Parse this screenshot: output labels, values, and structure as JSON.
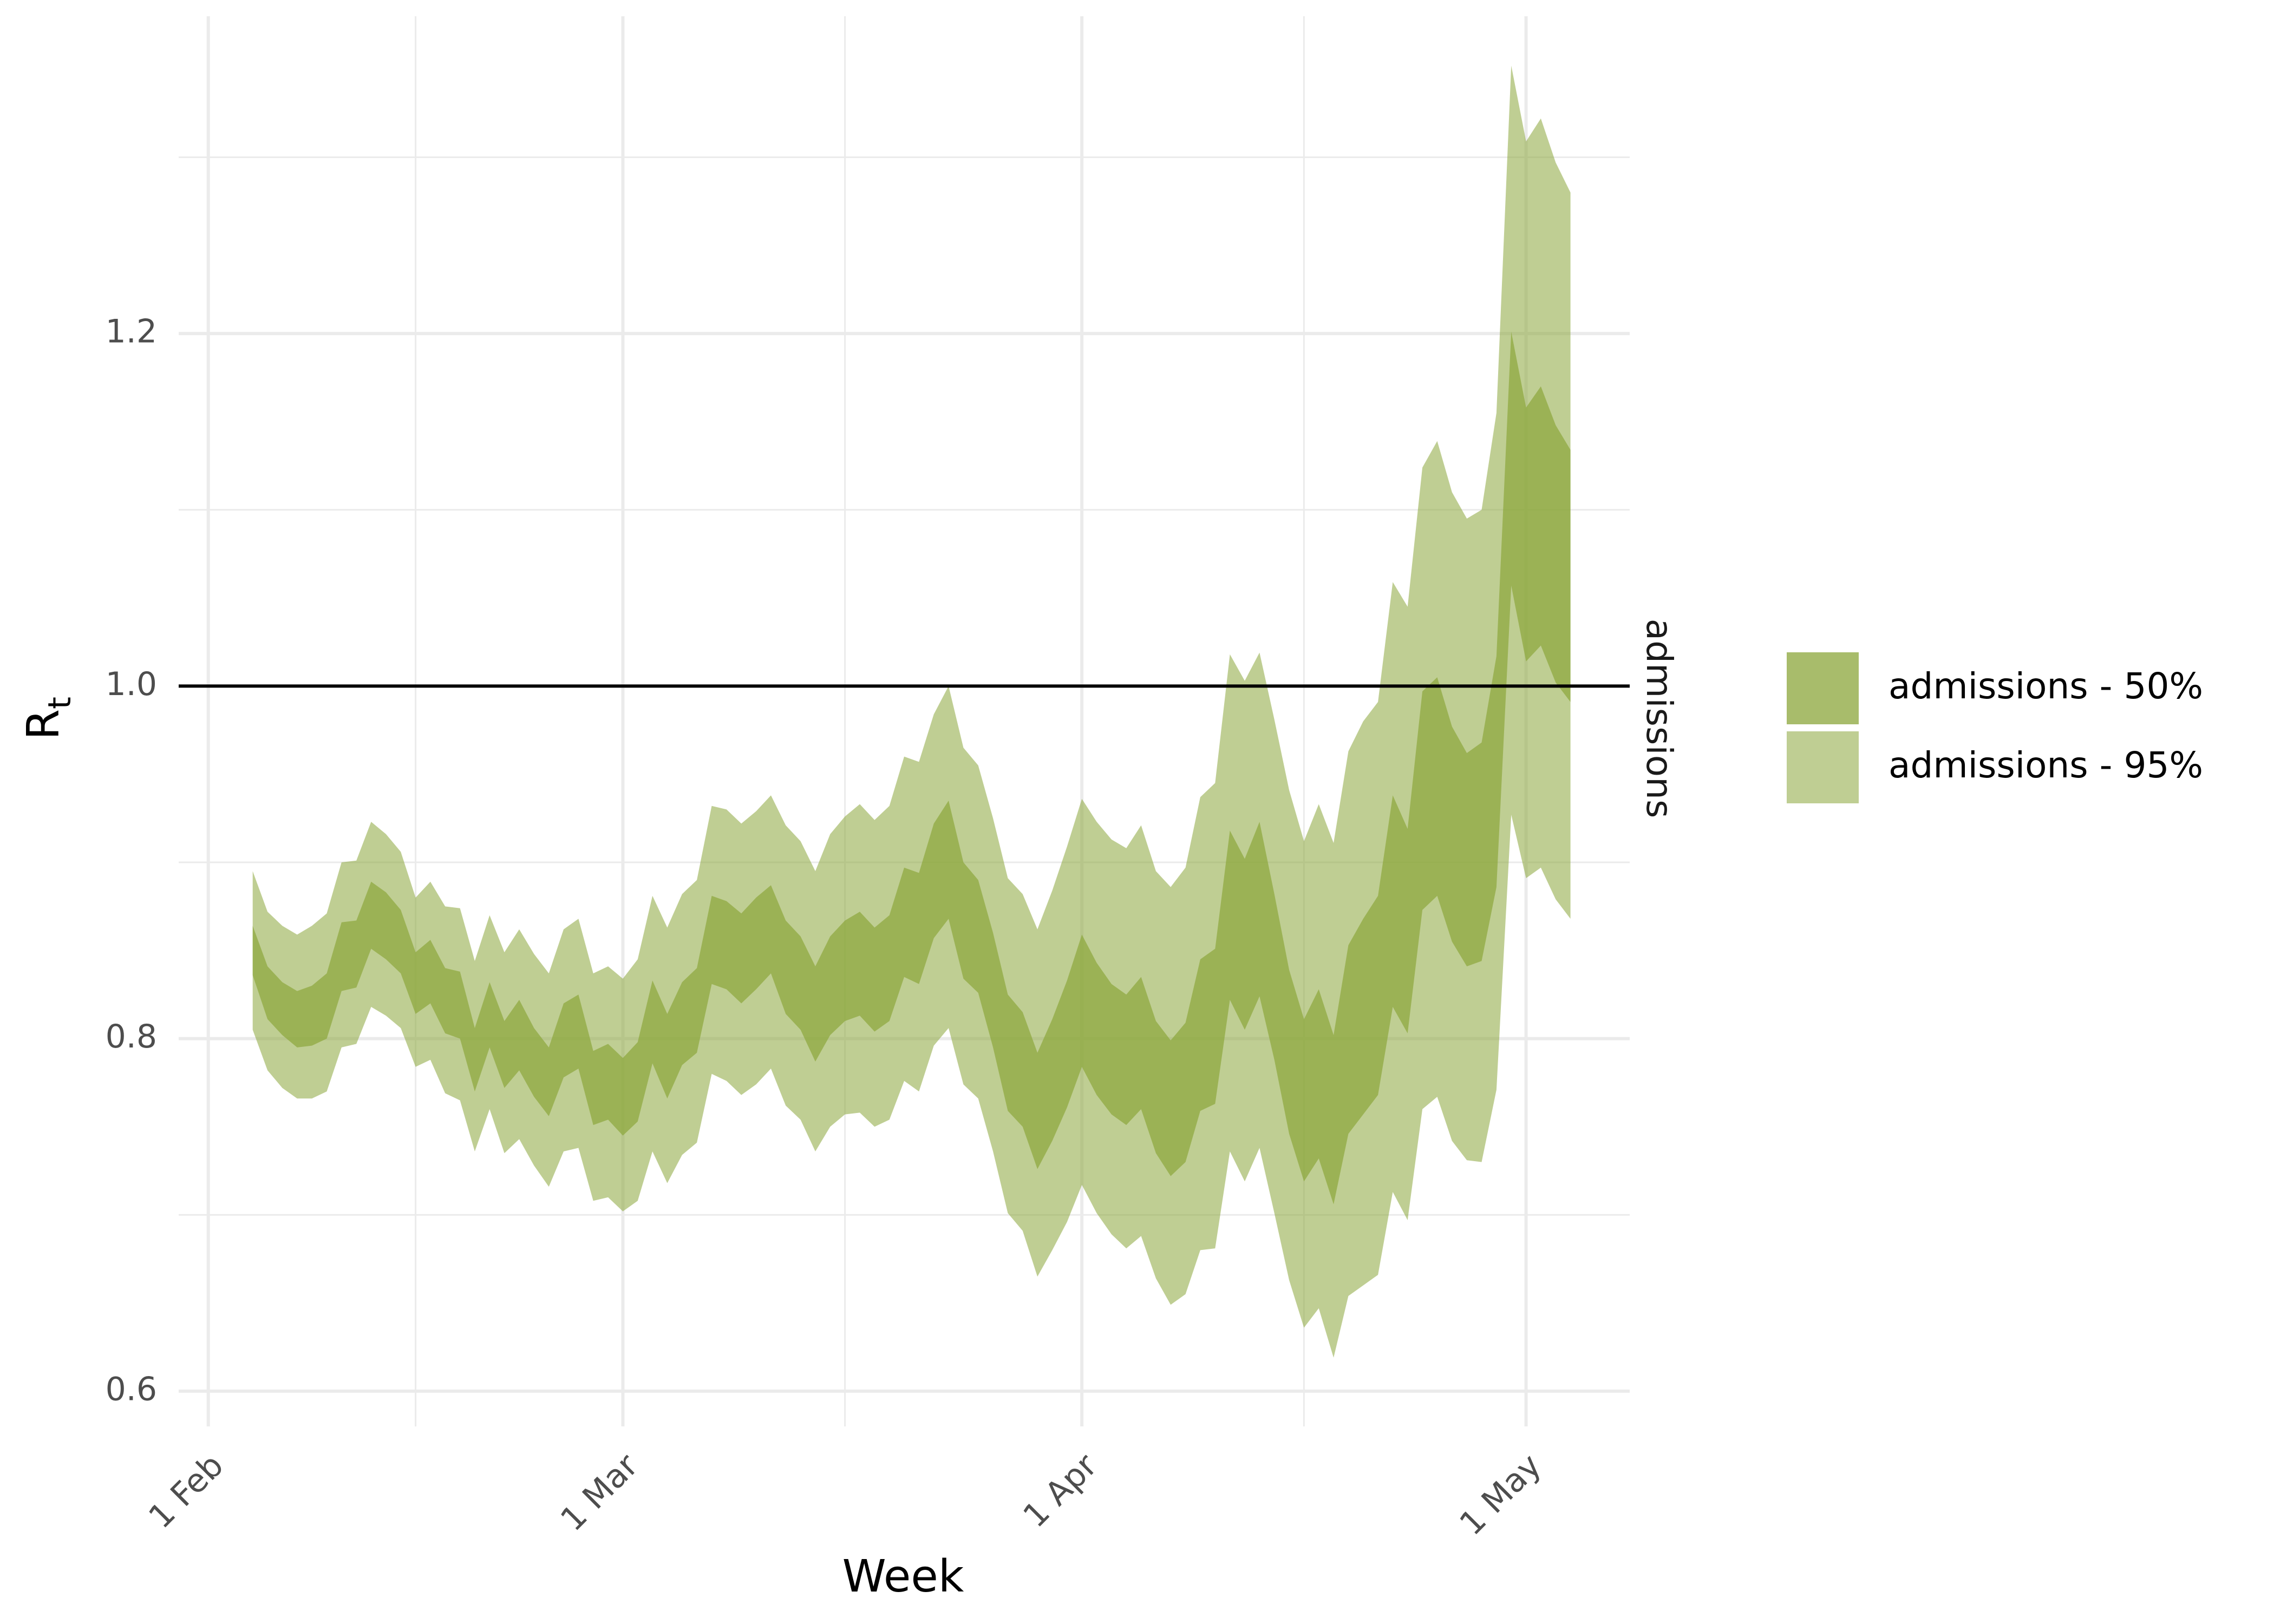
{
  "chart_data": {
    "type": "area",
    "xlabel": "Week",
    "ylabel": "R",
    "ylabel_subscript": "t",
    "facet_label": "admissions",
    "ylim": [
      0.58,
      1.38
    ],
    "xlim": [
      "2023-01-30",
      "2023-05-08"
    ],
    "y_ticks": [
      0.6,
      0.8,
      1.0,
      1.2
    ],
    "y_tick_labels": [
      "0.6",
      "0.8",
      "1.0",
      "1.2"
    ],
    "y_minor_ticks": [
      0.7,
      0.9,
      1.1,
      1.3
    ],
    "x_ticks": [
      "2023-02-01",
      "2023-03-01",
      "2023-04-01",
      "2023-05-01"
    ],
    "x_tick_labels": [
      "1 Feb",
      "1 Mar",
      "1 Apr",
      "1 May"
    ],
    "x_minor_ticks": [
      "2023-02-15",
      "2023-03-16",
      "2023-04-16"
    ],
    "reference_line": 1.0,
    "grid": true,
    "legend_position": "right",
    "colors": {
      "band50": "#8ba63a",
      "band95": "#b5c784",
      "reference": "#000000",
      "grid": "#ebebeb"
    },
    "legend": [
      {
        "label": "admissions - 50%",
        "color": "#8ba63a",
        "opacity": 0.75
      },
      {
        "label": "admissions - 95%",
        "color": "#8ba63a",
        "opacity": 0.55
      }
    ],
    "series": [
      {
        "name": "admissions - 95%",
        "dates": [
          "2023-02-04",
          "2023-02-05",
          "2023-02-06",
          "2023-02-07",
          "2023-02-08",
          "2023-02-09",
          "2023-02-10",
          "2023-02-11",
          "2023-02-12",
          "2023-02-13",
          "2023-02-14",
          "2023-02-15",
          "2023-02-16",
          "2023-02-17",
          "2023-02-18",
          "2023-02-19",
          "2023-02-20",
          "2023-02-21",
          "2023-02-22",
          "2023-02-23",
          "2023-02-24",
          "2023-02-25",
          "2023-02-26",
          "2023-02-27",
          "2023-02-28",
          "2023-03-01",
          "2023-03-02",
          "2023-03-03",
          "2023-03-04",
          "2023-03-05",
          "2023-03-06",
          "2023-03-07",
          "2023-03-08",
          "2023-03-09",
          "2023-03-10",
          "2023-03-11",
          "2023-03-12",
          "2023-03-13",
          "2023-03-14",
          "2023-03-15",
          "2023-03-16",
          "2023-03-17",
          "2023-03-18",
          "2023-03-19",
          "2023-03-20",
          "2023-03-21",
          "2023-03-22",
          "2023-03-23",
          "2023-03-24",
          "2023-03-25",
          "2023-03-26",
          "2023-03-27",
          "2023-03-28",
          "2023-03-29",
          "2023-03-30",
          "2023-03-31",
          "2023-04-01",
          "2023-04-02",
          "2023-04-03",
          "2023-04-04",
          "2023-04-05",
          "2023-04-06",
          "2023-04-07",
          "2023-04-08",
          "2023-04-09",
          "2023-04-10",
          "2023-04-11",
          "2023-04-12",
          "2023-04-13",
          "2023-04-14",
          "2023-04-15",
          "2023-04-16",
          "2023-04-17",
          "2023-04-18",
          "2023-04-19",
          "2023-04-20",
          "2023-04-21",
          "2023-04-22",
          "2023-04-23",
          "2023-04-24",
          "2023-04-25",
          "2023-04-26",
          "2023-04-27",
          "2023-04-28",
          "2023-04-29",
          "2023-04-30",
          "2023-05-01",
          "2023-05-02",
          "2023-05-03",
          "2023-05-04"
        ],
        "lower": [
          0.805,
          0.782,
          0.772,
          0.766,
          0.766,
          0.77,
          0.795,
          0.797,
          0.818,
          0.813,
          0.806,
          0.784,
          0.788,
          0.769,
          0.765,
          0.736,
          0.76,
          0.735,
          0.743,
          0.728,
          0.716,
          0.736,
          0.738,
          0.708,
          0.71,
          0.702,
          0.708,
          0.736,
          0.718,
          0.734,
          0.741,
          0.78,
          0.776,
          0.768,
          0.774,
          0.783,
          0.762,
          0.754,
          0.736,
          0.75,
          0.757,
          0.758,
          0.75,
          0.754,
          0.776,
          0.77,
          0.796,
          0.806,
          0.774,
          0.766,
          0.736,
          0.701,
          0.691,
          0.665,
          0.68,
          0.696,
          0.717,
          0.701,
          0.689,
          0.681,
          0.688,
          0.664,
          0.649,
          0.655,
          0.68,
          0.681,
          0.736,
          0.719,
          0.738,
          0.701,
          0.663,
          0.636,
          0.647,
          0.619,
          0.654,
          0.66,
          0.666,
          0.713,
          0.697,
          0.76,
          0.767,
          0.742,
          0.731,
          0.73,
          0.771,
          0.927,
          0.891,
          0.897,
          0.879,
          0.868
        ],
        "upper": [
          0.895,
          0.872,
          0.864,
          0.859,
          0.864,
          0.871,
          0.9,
          0.901,
          0.923,
          0.916,
          0.906,
          0.88,
          0.889,
          0.875,
          0.874,
          0.844,
          0.87,
          0.849,
          0.862,
          0.848,
          0.837,
          0.862,
          0.868,
          0.837,
          0.841,
          0.834,
          0.845,
          0.881,
          0.863,
          0.882,
          0.89,
          0.932,
          0.93,
          0.922,
          0.929,
          0.938,
          0.921,
          0.912,
          0.895,
          0.916,
          0.926,
          0.933,
          0.924,
          0.932,
          0.96,
          0.957,
          0.984,
          1.0,
          0.965,
          0.955,
          0.925,
          0.891,
          0.882,
          0.862,
          0.884,
          0.909,
          0.936,
          0.923,
          0.913,
          0.908,
          0.921,
          0.895,
          0.886,
          0.897,
          0.937,
          0.945,
          1.018,
          1.003,
          1.019,
          0.981,
          0.941,
          0.912,
          0.933,
          0.911,
          0.963,
          0.98,
          0.991,
          1.059,
          1.045,
          1.124,
          1.139,
          1.11,
          1.095,
          1.1,
          1.155,
          1.352,
          1.309,
          1.322,
          1.297,
          1.28
        ]
      },
      {
        "name": "admissions - 50%",
        "dates": [
          "2023-02-04",
          "2023-02-05",
          "2023-02-06",
          "2023-02-07",
          "2023-02-08",
          "2023-02-09",
          "2023-02-10",
          "2023-02-11",
          "2023-02-12",
          "2023-02-13",
          "2023-02-14",
          "2023-02-15",
          "2023-02-16",
          "2023-02-17",
          "2023-02-18",
          "2023-02-19",
          "2023-02-20",
          "2023-02-21",
          "2023-02-22",
          "2023-02-23",
          "2023-02-24",
          "2023-02-25",
          "2023-02-26",
          "2023-02-27",
          "2023-02-28",
          "2023-03-01",
          "2023-03-02",
          "2023-03-03",
          "2023-03-04",
          "2023-03-05",
          "2023-03-06",
          "2023-03-07",
          "2023-03-08",
          "2023-03-09",
          "2023-03-10",
          "2023-03-11",
          "2023-03-12",
          "2023-03-13",
          "2023-03-14",
          "2023-03-15",
          "2023-03-16",
          "2023-03-17",
          "2023-03-18",
          "2023-03-19",
          "2023-03-20",
          "2023-03-21",
          "2023-03-22",
          "2023-03-23",
          "2023-03-24",
          "2023-03-25",
          "2023-03-26",
          "2023-03-27",
          "2023-03-28",
          "2023-03-29",
          "2023-03-30",
          "2023-03-31",
          "2023-04-01",
          "2023-04-02",
          "2023-04-03",
          "2023-04-04",
          "2023-04-05",
          "2023-04-06",
          "2023-04-07",
          "2023-04-08",
          "2023-04-09",
          "2023-04-10",
          "2023-04-11",
          "2023-04-12",
          "2023-04-13",
          "2023-04-14",
          "2023-04-15",
          "2023-04-16",
          "2023-04-17",
          "2023-04-18",
          "2023-04-19",
          "2023-04-20",
          "2023-04-21",
          "2023-04-22",
          "2023-04-23",
          "2023-04-24",
          "2023-04-25",
          "2023-04-26",
          "2023-04-27",
          "2023-04-28",
          "2023-04-29",
          "2023-04-30",
          "2023-05-01",
          "2023-05-02",
          "2023-05-03",
          "2023-05-04"
        ],
        "lower": [
          0.836,
          0.811,
          0.802,
          0.795,
          0.796,
          0.8,
          0.827,
          0.829,
          0.851,
          0.845,
          0.837,
          0.814,
          0.82,
          0.803,
          0.8,
          0.77,
          0.795,
          0.772,
          0.782,
          0.767,
          0.756,
          0.778,
          0.783,
          0.751,
          0.754,
          0.745,
          0.753,
          0.786,
          0.766,
          0.785,
          0.792,
          0.831,
          0.828,
          0.82,
          0.828,
          0.837,
          0.814,
          0.805,
          0.787,
          0.802,
          0.81,
          0.813,
          0.804,
          0.81,
          0.835,
          0.831,
          0.857,
          0.868,
          0.834,
          0.826,
          0.795,
          0.759,
          0.75,
          0.726,
          0.742,
          0.761,
          0.784,
          0.768,
          0.757,
          0.751,
          0.76,
          0.735,
          0.722,
          0.73,
          0.759,
          0.763,
          0.822,
          0.805,
          0.824,
          0.788,
          0.746,
          0.719,
          0.732,
          0.706,
          0.746,
          0.757,
          0.768,
          0.818,
          0.803,
          0.873,
          0.881,
          0.855,
          0.841,
          0.844,
          0.886,
          1.057,
          1.014,
          1.023,
          1.002,
          0.991
        ],
        "upper": [
          0.864,
          0.841,
          0.832,
          0.827,
          0.83,
          0.837,
          0.866,
          0.867,
          0.889,
          0.883,
          0.873,
          0.849,
          0.856,
          0.84,
          0.838,
          0.806,
          0.832,
          0.81,
          0.822,
          0.806,
          0.795,
          0.82,
          0.825,
          0.793,
          0.797,
          0.789,
          0.798,
          0.833,
          0.814,
          0.832,
          0.84,
          0.881,
          0.878,
          0.871,
          0.88,
          0.887,
          0.867,
          0.858,
          0.841,
          0.858,
          0.867,
          0.872,
          0.863,
          0.87,
          0.897,
          0.894,
          0.922,
          0.935,
          0.9,
          0.89,
          0.86,
          0.825,
          0.815,
          0.792,
          0.811,
          0.833,
          0.859,
          0.843,
          0.831,
          0.825,
          0.835,
          0.81,
          0.799,
          0.809,
          0.845,
          0.851,
          0.918,
          0.902,
          0.923,
          0.882,
          0.839,
          0.811,
          0.828,
          0.802,
          0.853,
          0.868,
          0.881,
          0.938,
          0.919,
          0.997,
          1.005,
          0.977,
          0.962,
          0.968,
          1.017,
          1.201,
          1.158,
          1.17,
          1.148,
          1.134
        ]
      }
    ]
  }
}
